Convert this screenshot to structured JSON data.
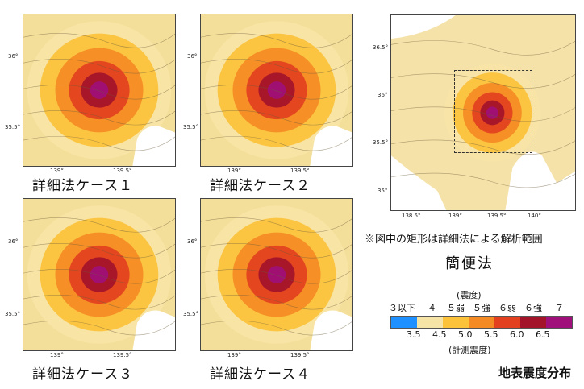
{
  "panels": [
    {
      "caption": "詳細法ケース１",
      "lat_ticks": [
        "36°",
        "35.5°"
      ],
      "lon_ticks": [
        "139°",
        "139.5°"
      ]
    },
    {
      "caption": "詳細法ケース２",
      "lat_ticks": [
        "36°",
        "35.5°"
      ],
      "lon_ticks": [
        "139°",
        "139.5°"
      ]
    },
    {
      "caption": "詳細法ケース３",
      "lat_ticks": [
        "36°",
        "35.5°"
      ],
      "lon_ticks": [
        "139°",
        "139.5°"
      ]
    },
    {
      "caption": "詳細法ケース４",
      "lat_ticks": [
        "36°",
        "35.5°"
      ],
      "lon_ticks": [
        "139°",
        "139.5°"
      ]
    }
  ],
  "simple_map": {
    "lat_ticks": [
      "36.5°",
      "36°",
      "35.5°",
      "35°"
    ],
    "lon_ticks": [
      "138.5°",
      "139°",
      "139.5°",
      "140°"
    ]
  },
  "note": "※図中の矩形は詳細法による解析範囲",
  "simple_label": "簡便法",
  "legend": {
    "title": "(震度)",
    "intensity_labels": [
      "３以下",
      "４",
      "５弱",
      "５強",
      "６弱",
      "６強",
      "７"
    ],
    "values": [
      "3.5",
      "4.5",
      "5.0",
      "5.5",
      "6.0",
      "6.5"
    ],
    "subtitle": "(計測震度)",
    "colors": [
      "#1e90ff",
      "#f6e3a6",
      "#fbc23a",
      "#f48a24",
      "#e2401e",
      "#a3142a",
      "#a0107a"
    ]
  },
  "figure_title": "地表震度分布"
}
